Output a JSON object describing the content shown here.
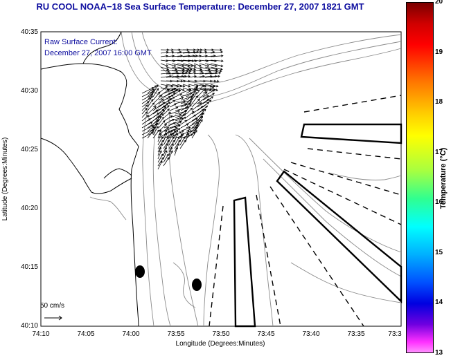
{
  "title": "RU COOL  NOAA−18  Sea Surface Temperature:  December 27, 2007 1821 GMT",
  "current_label_line1": "Raw Surface Current:",
  "current_label_line2": "December 27, 2007 16:00 GMT",
  "x_axis": {
    "label": "Longitude (Degrees:Minutes)",
    "ticks": [
      "74:10",
      "74:05",
      "74:00",
      "73:55",
      "73:50",
      "73:45",
      "73:40",
      "73:35",
      "73:3"
    ]
  },
  "y_axis": {
    "label": "Latitude (Degrees:Minutes)",
    "ticks": [
      "40:35",
      "40:30",
      "40:25",
      "40:20",
      "40:15",
      "40:10"
    ]
  },
  "scale_label": "50 cm/s",
  "colorbar": {
    "label": "Temperature (°C)",
    "min": 13,
    "max": 20,
    "ticks": [
      "20",
      "19",
      "18",
      "17",
      "16",
      "15",
      "14",
      "13"
    ]
  },
  "colors": {
    "title": "#1010a0",
    "contour": "#8a8a8a",
    "coast": "#000000"
  }
}
